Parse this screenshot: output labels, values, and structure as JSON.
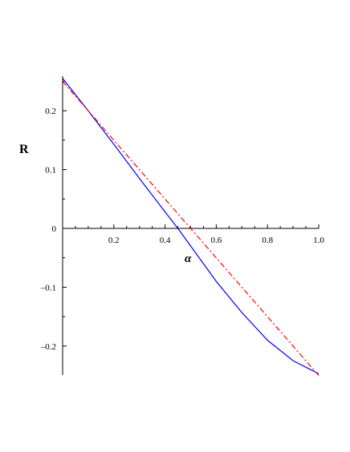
{
  "chart_data": {
    "type": "line",
    "xlabel": "α",
    "ylabel": "R",
    "xlim": [
      0,
      1.0
    ],
    "ylim": [
      -0.25,
      0.26
    ],
    "x_ticks": [
      0.2,
      0.4,
      0.6,
      0.8,
      1.0
    ],
    "x_tick_labels": [
      "0.2",
      "0.4",
      "0.6",
      "0.8",
      "1.0"
    ],
    "y_ticks": [
      0.2,
      0.1,
      0,
      -0.1,
      -0.2
    ],
    "y_tick_labels": [
      "0.2",
      "0.1",
      "0",
      "–0.1",
      "–0.2"
    ],
    "grid": false,
    "series": [
      {
        "color": "#0000ff",
        "style": "solid",
        "x": [
          0,
          0.1,
          0.2,
          0.3,
          0.4,
          0.45,
          0.5,
          0.6,
          0.7,
          0.8,
          0.9,
          1.0
        ],
        "y": [
          0.255,
          0.2,
          0.143,
          0.085,
          0.028,
          0,
          -0.03,
          -0.09,
          -0.143,
          -0.19,
          -0.225,
          -0.247
        ]
      },
      {
        "color": "#ff0000",
        "style": "dashdot",
        "x": [
          0,
          0.5,
          1.0
        ],
        "y": [
          0.25,
          0,
          -0.25
        ]
      }
    ]
  }
}
